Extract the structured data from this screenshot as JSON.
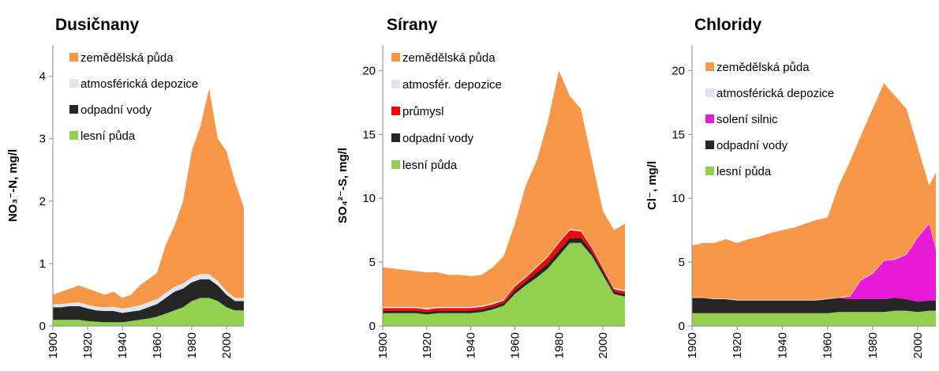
{
  "chart_data": [
    {
      "type": "area",
      "stacked": true,
      "title": "Dusičnany",
      "y_label": "NO₃⁻-N, mg/l",
      "x": [
        1900,
        1905,
        1910,
        1915,
        1920,
        1925,
        1930,
        1935,
        1940,
        1945,
        1950,
        1955,
        1960,
        1965,
        1970,
        1975,
        1980,
        1985,
        1990,
        1995,
        2000,
        2005,
        2010
      ],
      "xlim": [
        1900,
        2010
      ],
      "xticks": [
        1900,
        1920,
        1940,
        1960,
        1980,
        2000
      ],
      "ylim": [
        0,
        4.5
      ],
      "yticks": [
        0,
        1,
        2,
        3,
        4
      ],
      "series": [
        {
          "name": "zemědělská půda",
          "color": "#f79646",
          "values": [
            0.15,
            0.2,
            0.23,
            0.27,
            0.26,
            0.24,
            0.2,
            0.24,
            0.17,
            0.2,
            0.32,
            0.37,
            0.42,
            0.77,
            0.97,
            1.32,
            2.02,
            2.37,
            2.97,
            2.28,
            2.24,
            1.85,
            1.45
          ]
        },
        {
          "name": "atmosférická depozice",
          "color": "#dce6f2",
          "values": [
            0.05,
            0.05,
            0.05,
            0.06,
            0.06,
            0.06,
            0.06,
            0.07,
            0.07,
            0.07,
            0.08,
            0.08,
            0.08,
            0.08,
            0.08,
            0.08,
            0.08,
            0.08,
            0.08,
            0.07,
            0.06,
            0.05,
            0.05
          ]
        },
        {
          "name": "odpadní vody",
          "color": "#262626",
          "values": [
            0.2,
            0.2,
            0.22,
            0.22,
            0.2,
            0.18,
            0.18,
            0.18,
            0.15,
            0.15,
            0.15,
            0.18,
            0.2,
            0.25,
            0.3,
            0.3,
            0.3,
            0.3,
            0.3,
            0.25,
            0.2,
            0.15,
            0.15
          ]
        },
        {
          "name": "lesní půda",
          "color": "#92d050",
          "values": [
            0.1,
            0.1,
            0.1,
            0.1,
            0.08,
            0.07,
            0.06,
            0.06,
            0.06,
            0.08,
            0.1,
            0.12,
            0.15,
            0.2,
            0.25,
            0.3,
            0.4,
            0.45,
            0.45,
            0.4,
            0.3,
            0.25,
            0.25
          ]
        }
      ]
    },
    {
      "type": "area",
      "stacked": true,
      "title": "Sírany",
      "y_label": "SO₄²⁻-S, mg/l",
      "x": [
        1900,
        1905,
        1910,
        1915,
        1920,
        1925,
        1930,
        1935,
        1940,
        1945,
        1950,
        1955,
        1960,
        1965,
        1970,
        1975,
        1980,
        1985,
        1990,
        1995,
        2000,
        2005,
        2010
      ],
      "xlim": [
        1900,
        2010
      ],
      "xticks": [
        1900,
        1920,
        1940,
        1960,
        1980,
        2000
      ],
      "ylim": [
        0,
        22
      ],
      "yticks": [
        0,
        5,
        10,
        15,
        20
      ],
      "series": [
        {
          "name": "zemědělská půda",
          "color": "#f79646",
          "values": [
            3.1,
            3.0,
            2.9,
            2.8,
            2.8,
            2.7,
            2.5,
            2.5,
            2.4,
            2.4,
            2.8,
            3.4,
            4.8,
            7.1,
            8.3,
            10.5,
            13.4,
            10.4,
            9.5,
            6.8,
            4.4,
            4.5,
            5.2
          ]
        },
        {
          "name": "atmosfér. depozice",
          "color": "#dce6f2",
          "values": [
            0.1,
            0.1,
            0.1,
            0.1,
            0.1,
            0.1,
            0.1,
            0.1,
            0.1,
            0.1,
            0.1,
            0.1,
            0.1,
            0.1,
            0.1,
            0.1,
            0.1,
            0.1,
            0.1,
            0.1,
            0.1,
            0.1,
            0.1
          ]
        },
        {
          "name": "průmysl",
          "color": "#ff0000",
          "values": [
            0.2,
            0.2,
            0.2,
            0.2,
            0.2,
            0.2,
            0.2,
            0.2,
            0.2,
            0.2,
            0.2,
            0.2,
            0.3,
            0.3,
            0.4,
            0.5,
            0.6,
            0.6,
            0.5,
            0.3,
            0.2,
            0.2,
            0.2
          ]
        },
        {
          "name": "odpadní vody",
          "color": "#262626",
          "values": [
            0.2,
            0.2,
            0.2,
            0.2,
            0.2,
            0.2,
            0.2,
            0.2,
            0.2,
            0.2,
            0.2,
            0.2,
            0.3,
            0.3,
            0.4,
            0.4,
            0.4,
            0.4,
            0.4,
            0.3,
            0.3,
            0.2,
            0.2
          ]
        },
        {
          "name": "lesní půda",
          "color": "#92d050",
          "values": [
            1.0,
            1.0,
            1.0,
            1.0,
            0.9,
            1.0,
            1.0,
            1.0,
            1.0,
            1.1,
            1.3,
            1.6,
            2.5,
            3.2,
            3.8,
            4.5,
            5.5,
            6.5,
            6.5,
            5.5,
            4.0,
            2.5,
            2.3
          ]
        }
      ]
    },
    {
      "type": "area",
      "stacked": true,
      "title": "Chloridy",
      "y_label": "Cl⁻, mg/l",
      "x": [
        1900,
        1905,
        1910,
        1915,
        1920,
        1925,
        1930,
        1935,
        1940,
        1945,
        1950,
        1955,
        1960,
        1965,
        1970,
        1975,
        1980,
        1985,
        1990,
        1995,
        2000,
        2005,
        2008
      ],
      "xlim": [
        1900,
        2008
      ],
      "xticks": [
        1900,
        1920,
        1940,
        1960,
        1980,
        2000
      ],
      "ylim": [
        0,
        22
      ],
      "yticks": [
        0,
        5,
        10,
        15,
        20
      ],
      "series": [
        {
          "name": "zemědělská půda",
          "color": "#f79646",
          "values": [
            4.05,
            4.25,
            4.35,
            4.65,
            4.45,
            4.75,
            4.95,
            5.25,
            5.45,
            5.65,
            5.95,
            6.25,
            6.35,
            8.75,
            10.55,
            11.35,
            12.85,
            13.85,
            12.75,
            11.35,
            7.05,
            2.95,
            5.95
          ]
        },
        {
          "name": "atmosférická depozice",
          "color": "#dce6f2",
          "values": [
            0.05,
            0.05,
            0.05,
            0.05,
            0.05,
            0.05,
            0.05,
            0.05,
            0.05,
            0.05,
            0.05,
            0.05,
            0.05,
            0.05,
            0.05,
            0.05,
            0.05,
            0.05,
            0.05,
            0.05,
            0.05,
            0.05,
            0.05
          ]
        },
        {
          "name": "solení silnic",
          "color": "#e81ad8",
          "values": [
            0,
            0,
            0,
            0,
            0,
            0,
            0,
            0,
            0,
            0,
            0,
            0,
            0,
            0,
            0.2,
            1.5,
            2,
            3,
            3,
            3.5,
            5,
            6,
            4
          ]
        },
        {
          "name": "odpadní vody",
          "color": "#262626",
          "values": [
            1.2,
            1.2,
            1.1,
            1.1,
            1.0,
            1.0,
            1.0,
            1.0,
            1.0,
            1.0,
            1.0,
            1.0,
            1.1,
            1.1,
            1.0,
            1.0,
            1.0,
            1.0,
            1.0,
            0.9,
            0.8,
            0.8,
            0.8
          ]
        },
        {
          "name": "lesní půda",
          "color": "#92d050",
          "values": [
            1,
            1,
            1,
            1,
            1,
            1,
            1,
            1,
            1,
            1,
            1,
            1,
            1,
            1.1,
            1.1,
            1.1,
            1.1,
            1.1,
            1.2,
            1.2,
            1.1,
            1.2,
            1.2
          ]
        }
      ]
    }
  ]
}
